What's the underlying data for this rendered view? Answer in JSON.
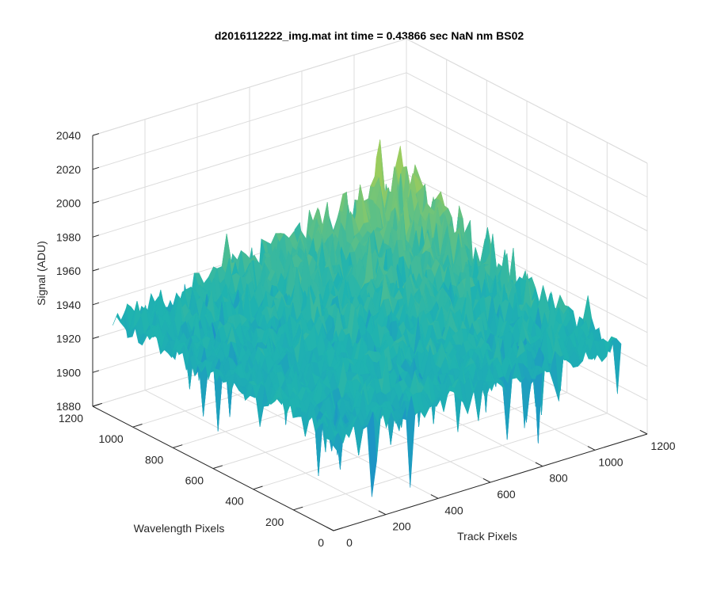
{
  "chart_data": {
    "type": "surface",
    "title": "d2016112222_img.mat int time = 0.43866 sec  NaN nm BS02",
    "xlabel": "Track Pixels",
    "ylabel": "Wavelength Pixels",
    "zlabel": "Signal (ADU)",
    "xlim": [
      0,
      1200
    ],
    "ylim": [
      0,
      1200
    ],
    "zlim": [
      1880,
      2040
    ],
    "xticks": [
      "0",
      "200",
      "400",
      "600",
      "800",
      "1000",
      "1200"
    ],
    "yticks": [
      "0",
      "200",
      "400",
      "600",
      "800",
      "1000",
      "1200"
    ],
    "zticks": [
      "1880",
      "1900",
      "1920",
      "1940",
      "1960",
      "1980",
      "2000",
      "2020",
      "2040"
    ],
    "grid": true,
    "colormap": "parula",
    "surface": {
      "track_range": [
        0,
        1100
      ],
      "wavelength_range": [
        0,
        1100
      ],
      "base_level": 1937,
      "noise_amplitude": 12,
      "peak_region": "high track, high wavelength",
      "max_value": 2030,
      "min_value": 1885
    },
    "colors": {
      "low": "#1a6fe0",
      "mid": "#1fb3b0",
      "high": "#b8d24a",
      "peak": "#e8c84a"
    }
  }
}
